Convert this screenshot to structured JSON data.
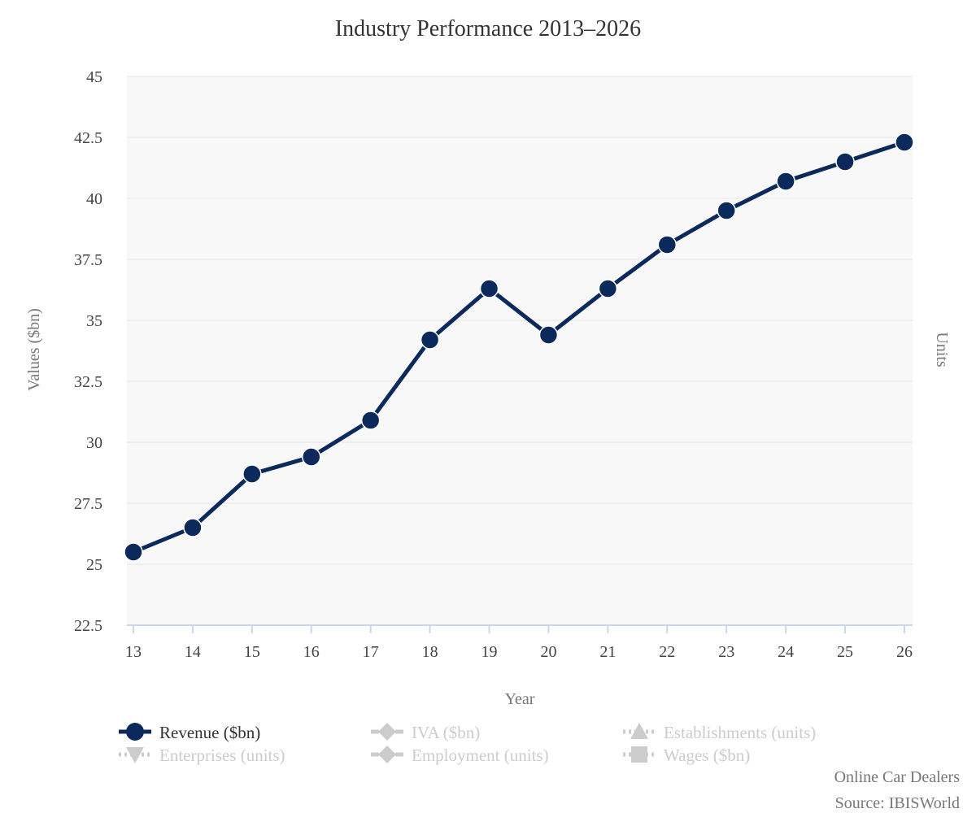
{
  "chart_data": {
    "type": "line",
    "title": "Industry Performance 2013–2026",
    "xlabel": "Year",
    "ylabel": "Values ($bn)",
    "y2label": "Units",
    "x": [
      "13",
      "14",
      "15",
      "16",
      "17",
      "18",
      "19",
      "20",
      "21",
      "22",
      "23",
      "24",
      "25",
      "26"
    ],
    "ylim": [
      22.5,
      45
    ],
    "yticks": [
      "22.5",
      "25",
      "27.5",
      "30",
      "32.5",
      "35",
      "37.5",
      "40",
      "42.5",
      "45"
    ],
    "grid": true,
    "legend_position": "bottom-left",
    "series": [
      {
        "name": "Revenue ($bn)",
        "values": [
          25.5,
          26.5,
          28.7,
          29.4,
          30.9,
          34.2,
          36.3,
          34.4,
          36.3,
          38.1,
          39.5,
          40.7,
          41.5,
          42.3
        ],
        "color": "#0b2a5b",
        "visible": true
      }
    ],
    "legend": [
      {
        "label": "Revenue ($bn)",
        "symbol": "circle",
        "active": true
      },
      {
        "label": "IVA ($bn)",
        "symbol": "diamond",
        "active": false
      },
      {
        "label": "Establishments (units)",
        "symbol": "triangle",
        "active": false
      },
      {
        "label": "Enterprises (units)",
        "symbol": "triangle-down",
        "active": false
      },
      {
        "label": "Employment (units)",
        "symbol": "diamond",
        "active": false
      },
      {
        "label": "Wages ($bn)",
        "symbol": "square",
        "active": false
      }
    ]
  },
  "colors": {
    "series": "#0b2a5b",
    "inactive": "#cccccc",
    "plot_background": "#f8f8f9",
    "grid": "#e6e6e6",
    "axis": "#ccd6eb"
  },
  "credits": {
    "line1": "Online Car Dealers",
    "line2": "Source: IBISWorld"
  }
}
